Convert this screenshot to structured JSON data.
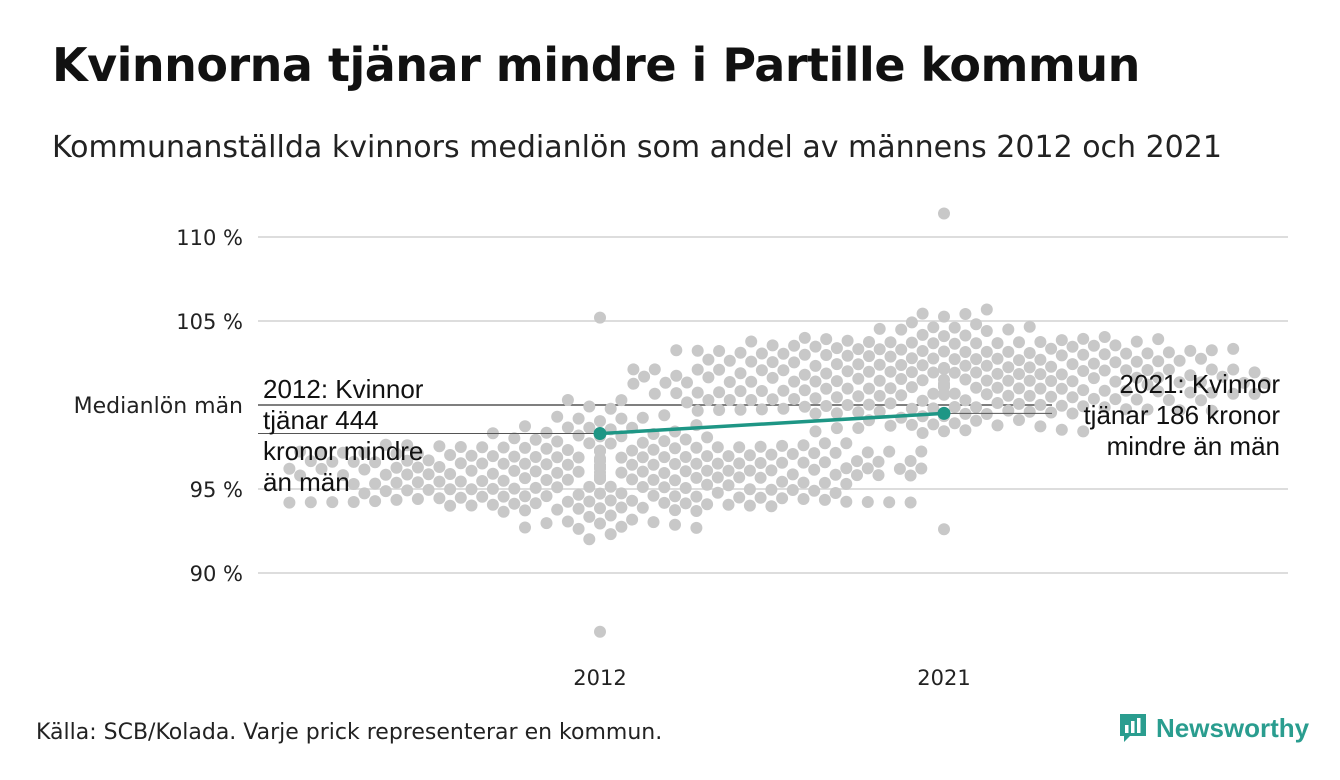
{
  "title": "Kvinnorna tjänar mindre i Partille kommun",
  "subtitle": "Kommunanställda kvinnors medianlön som andel av männens 2012 och 2021",
  "source": "Källa: SCB/Kolada. Varje prick representerar en kommun.",
  "brand": "Newsworthy",
  "colors": {
    "dots": "#c8c8c8",
    "highlight": "#1e9685",
    "grid": "#dddddd",
    "reference": "#333333"
  },
  "chart_data": {
    "type": "scatter",
    "categories": [
      "2012",
      "2021"
    ],
    "y_ticks": [
      {
        "value": 90,
        "label": "90 %"
      },
      {
        "value": 95,
        "label": "95 %"
      },
      {
        "value": 105,
        "label": "105 %"
      },
      {
        "value": 110,
        "label": "110 %"
      }
    ],
    "ylim": [
      86.6,
      112
    ],
    "reference_line": {
      "value": 100,
      "label": "Medianlön män"
    },
    "highlight": {
      "values": [
        98.3,
        99.5
      ],
      "annotations": [
        [
          "2012: Kvinnor",
          "tjänar 444",
          "kronor mindre",
          "än män"
        ],
        [
          "2021: Kvinnor",
          "tjänar 186 kronor",
          "mindre än män"
        ]
      ]
    },
    "distribution": [
      {
        "category": "2012",
        "center": 96.0,
        "sd": 2.2,
        "min": 86.5,
        "max": 105.2,
        "count": 290
      },
      {
        "category": "2021",
        "center": 101.5,
        "sd": 2.3,
        "min": 92.6,
        "max": 111.4,
        "count": 290
      }
    ]
  }
}
